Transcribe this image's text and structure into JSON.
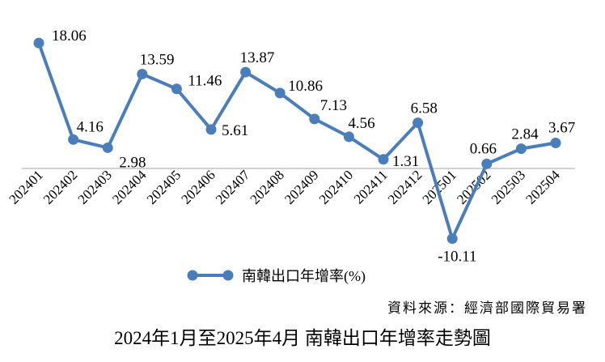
{
  "chart_data": {
    "type": "line",
    "title": "2024年1月至2025年4月 南韓出口年增率走勢圖",
    "source": "資料來源：經濟部國際貿易署",
    "categories": [
      "202401",
      "202402",
      "202403",
      "202404",
      "202405",
      "202406",
      "202407",
      "202408",
      "202409",
      "202410",
      "202411",
      "202412",
      "202501",
      "202502",
      "202503",
      "202504"
    ],
    "series": [
      {
        "name": "南韓出口年增率(%)",
        "color": "#4a7ebb",
        "values": [
          18.06,
          4.16,
          2.98,
          13.59,
          11.46,
          5.61,
          13.87,
          10.86,
          7.13,
          4.56,
          1.31,
          6.58,
          -10.11,
          0.66,
          2.84,
          3.67
        ]
      }
    ],
    "ylim": [
      -12,
      20
    ],
    "grid": false,
    "legend_position": "bottom",
    "data_labels": true
  }
}
